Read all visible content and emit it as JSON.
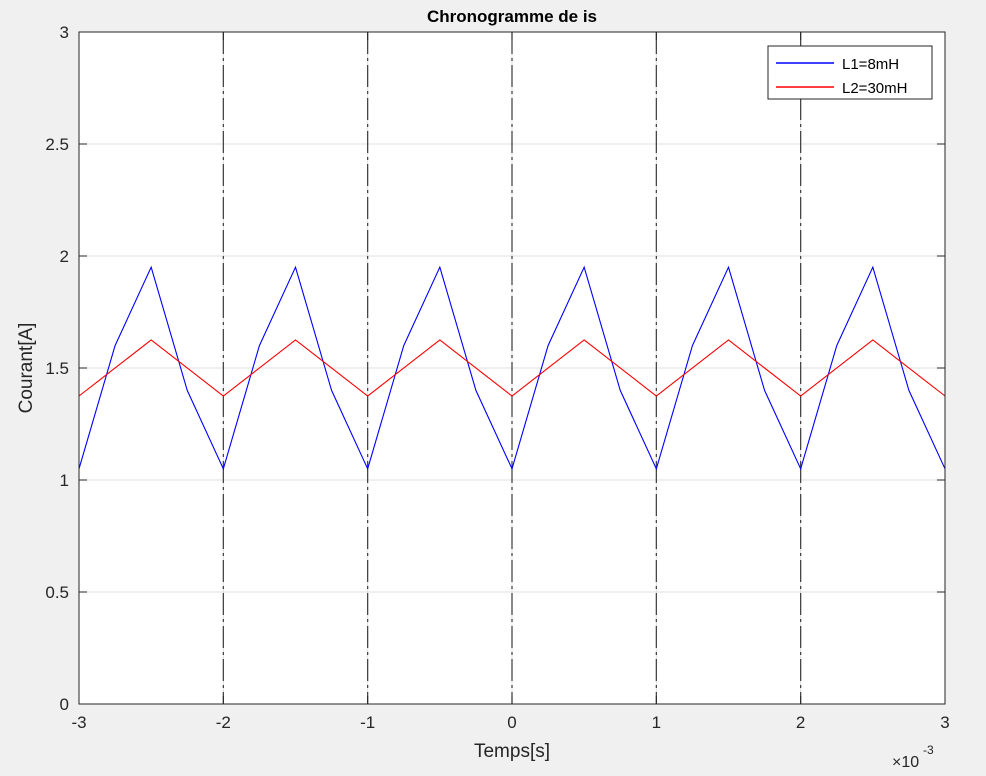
{
  "chart_data": {
    "type": "line",
    "title": "Chronogramme de is",
    "xlabel": "Temps[s]",
    "ylabel": "Courant[A]",
    "x_multiplier_label": "×10",
    "x_multiplier_exponent": "-3",
    "x_multiplier": 0.001,
    "xlim": [
      -3,
      3
    ],
    "ylim": [
      0,
      3
    ],
    "xticks": [
      -3,
      -2,
      -1,
      0,
      1,
      2,
      3
    ],
    "yticks": [
      0,
      0.5,
      1,
      1.5,
      2,
      2.5,
      3
    ],
    "xtick_labels": [
      "-3",
      "-2",
      "-1",
      "0",
      "1",
      "2",
      "3"
    ],
    "ytick_labels": [
      "0",
      "0.5",
      "1",
      "1.5",
      "2",
      "2.5",
      "3"
    ],
    "grid": true,
    "vertical_dashed_lines_x": [
      -2,
      -1,
      0,
      1,
      2
    ],
    "legend_position": "top-right",
    "series": [
      {
        "name": "L1=8mH",
        "color": "#0000ff",
        "x": [
          -3,
          -2.75,
          -2.5,
          -2.25,
          -2,
          -1.75,
          -1.5,
          -1.25,
          -1,
          -0.75,
          -0.5,
          -0.25,
          0,
          0.25,
          0.5,
          0.75,
          1,
          1.25,
          1.5,
          1.75,
          2,
          2.25,
          2.5,
          2.75,
          3
        ],
        "y": [
          1.05,
          1.6,
          1.95,
          1.4,
          1.05,
          1.6,
          1.95,
          1.4,
          1.05,
          1.6,
          1.95,
          1.4,
          1.05,
          1.6,
          1.95,
          1.4,
          1.05,
          1.6,
          1.95,
          1.4,
          1.05,
          1.6,
          1.95,
          1.4,
          1.05
        ]
      },
      {
        "name": "L2=30mH",
        "color": "#ff0000",
        "x": [
          -3,
          -2.5,
          -2,
          -1.5,
          -1,
          -0.5,
          0,
          0.5,
          1,
          1.5,
          2,
          2.5,
          3
        ],
        "y": [
          1.375,
          1.625,
          1.375,
          1.625,
          1.375,
          1.625,
          1.375,
          1.625,
          1.375,
          1.625,
          1.375,
          1.625,
          1.375
        ]
      }
    ]
  }
}
